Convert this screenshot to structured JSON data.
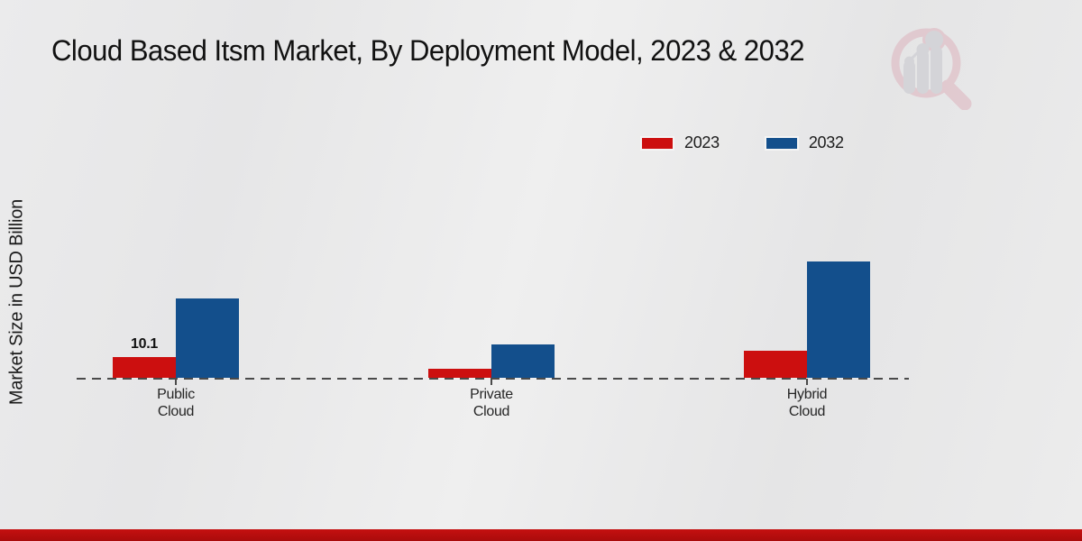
{
  "title": "Cloud Based Itsm Market, By Deployment Model, 2023 & 2032",
  "ylabel": "Market Size in USD Billion",
  "legend": [
    {
      "label": "2023"
    },
    {
      "label": "2032"
    }
  ],
  "colors": {
    "series_2023": "#cc0f0f",
    "series_2032": "#134f8c",
    "footer_strip": "#bb0d0d",
    "baseline": "#4a4a4a",
    "background": "#e9e9ea"
  },
  "watermark": "magnifier-bar-chart-logo",
  "chart_data": {
    "type": "bar",
    "title": "Cloud Based Itsm Market, By Deployment Model, 2023 & 2032",
    "xlabel": "",
    "ylabel": "Market Size in USD Billion",
    "categories": [
      "Public Cloud",
      "Private Cloud",
      "Hybrid Cloud"
    ],
    "series": [
      {
        "name": "2023",
        "color": "#cc0f0f",
        "values": [
          10.1,
          4.3,
          13.3
        ],
        "labels": [
          "10.1",
          null,
          null
        ]
      },
      {
        "name": "2032",
        "color": "#134f8c",
        "values": [
          38.5,
          16.2,
          56.6
        ],
        "labels": [
          null,
          null,
          null
        ]
      }
    ],
    "ylim": [
      0,
      60
    ],
    "grid": false,
    "legend_position": "top-right",
    "baseline_style": "dashed",
    "note": "Only the 2023 Public Cloud bar carries a printed data label (10.1); other values estimated from bar heights."
  }
}
